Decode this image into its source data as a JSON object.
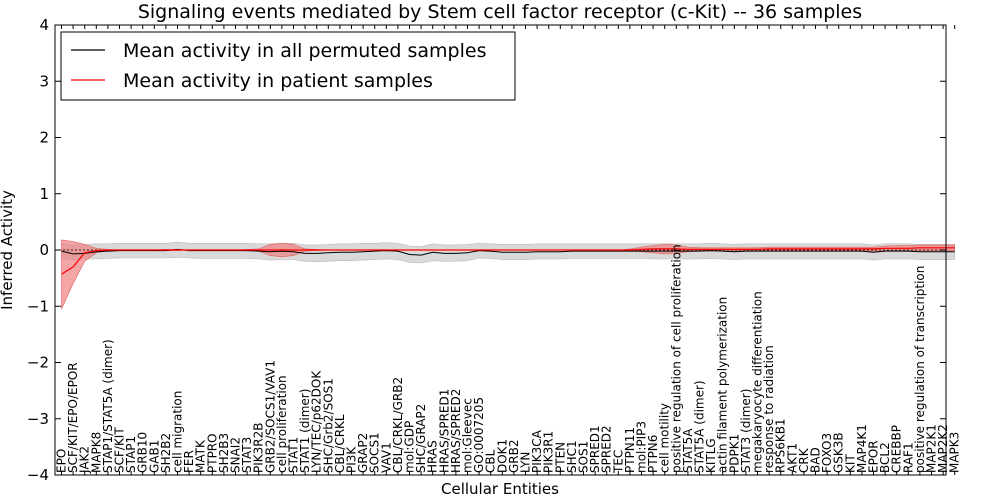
{
  "chart_data": {
    "type": "line",
    "title": "Signaling events mediated by Stem cell factor receptor (c-Kit) -- 36 samples",
    "xlabel": "Cellular Entities",
    "ylabel": "Inferred Activity",
    "ylim": [
      -4,
      4
    ],
    "yticks": [
      "−4",
      "−3",
      "−2",
      "−1",
      "0",
      "1",
      "2",
      "3",
      "4"
    ],
    "legend": {
      "placement": "top-left",
      "entries": [
        "Mean activity in all permuted samples",
        "Mean activity in patient samples"
      ]
    },
    "colors": {
      "permuted": "#000000",
      "patient": "#ff0000",
      "permuted_band": "#d9d9d9",
      "patient_band": "#f08080"
    },
    "categories": [
      "EPO",
      "SCF/KIT/EPO/EPOR",
      "JAK2",
      "MAPK8",
      "STAP1/STAT5A (dimer)",
      "SCF/KIT",
      "STAP1",
      "GRB10",
      "GAB1",
      "SH2B2",
      "cell migration",
      "FER",
      "MATK",
      "PTPRO",
      "SH2B3",
      "SNAI2",
      "STAT3",
      "PIK3R2B",
      "GRB2/SOCS1/VAV1",
      "cell proliferation",
      "STAT1",
      "STAT1 (dimer)",
      "LYN/TEC/p62DOK",
      "SHC/Grb2/SOS1",
      "CBL/CRKL",
      "PI3K",
      "GRAP2",
      "SOCS1",
      "VAV1",
      "CBL/CRKL/GRB2",
      "mol:GDP",
      "SHC/GRAP2",
      "HRAS",
      "HRAS/SPRED1",
      "HRAS/SPRED2",
      "mol:Gleevec",
      "GO:0007205",
      "CBL",
      "DOK1",
      "GRB2",
      "LYN",
      "PIK3CA",
      "PIK3R1",
      "PTEN",
      "SHC1",
      "SOS1",
      "SPRED1",
      "SPRED2",
      "TEC",
      "PTPN11",
      "mol:PIP3",
      "PTPN6",
      "cell motility",
      "positive regulation of cell proliferation",
      "STAT5A",
      "STAT5A (dimer)",
      "KITLG",
      "actin filament polymerization",
      "PDPK1",
      "STAT3 (dimer)",
      "megakaryocyte differentiation",
      "response to radiation",
      "RPS6KB1",
      "AKT1",
      "CRK",
      "BAD",
      "FOXO3",
      "GSK3B",
      "KIT",
      "MAP4K1",
      "EPOR",
      "BCL2",
      "CREBBP",
      "RAF1",
      "positive regulation of transcription",
      "MAP2K1",
      "MAP2K2",
      "MAPK3"
    ],
    "series": [
      {
        "name": "Mean activity in all permuted samples",
        "values": [
          -0.02,
          -0.07,
          -0.06,
          -0.03,
          -0.02,
          -0.01,
          -0.01,
          -0.01,
          -0.01,
          -0.01,
          0.01,
          -0.01,
          -0.01,
          -0.01,
          -0.01,
          -0.01,
          -0.01,
          -0.02,
          -0.03,
          -0.02,
          -0.03,
          -0.06,
          -0.06,
          -0.05,
          -0.04,
          -0.04,
          -0.03,
          -0.02,
          -0.01,
          -0.02,
          -0.08,
          -0.09,
          -0.04,
          -0.06,
          -0.06,
          -0.05,
          -0.01,
          -0.02,
          -0.04,
          -0.04,
          -0.04,
          -0.03,
          -0.03,
          -0.03,
          -0.02,
          -0.02,
          -0.02,
          -0.02,
          -0.02,
          -0.02,
          -0.02,
          -0.02,
          -0.02,
          -0.02,
          -0.02,
          -0.02,
          -0.01,
          -0.02,
          -0.03,
          -0.02,
          -0.02,
          -0.02,
          -0.02,
          -0.02,
          -0.02,
          -0.02,
          -0.02,
          -0.02,
          -0.02,
          -0.02,
          -0.04,
          -0.02,
          -0.02,
          -0.02,
          -0.03,
          -0.03,
          -0.03,
          -0.03
        ],
        "lower": [
          -0.15,
          -0.17,
          -0.16,
          -0.16,
          -0.15,
          -0.14,
          -0.14,
          -0.14,
          -0.14,
          -0.14,
          -0.13,
          -0.14,
          -0.15,
          -0.15,
          -0.15,
          -0.15,
          -0.15,
          -0.16,
          -0.18,
          -0.17,
          -0.17,
          -0.2,
          -0.21,
          -0.2,
          -0.19,
          -0.19,
          -0.18,
          -0.17,
          -0.16,
          -0.17,
          -0.22,
          -0.23,
          -0.19,
          -0.2,
          -0.2,
          -0.19,
          -0.14,
          -0.15,
          -0.17,
          -0.17,
          -0.17,
          -0.16,
          -0.16,
          -0.16,
          -0.15,
          -0.15,
          -0.15,
          -0.15,
          -0.15,
          -0.15,
          -0.15,
          -0.16,
          -0.16,
          -0.16,
          -0.16,
          -0.16,
          -0.15,
          -0.16,
          -0.17,
          -0.16,
          -0.16,
          -0.16,
          -0.16,
          -0.16,
          -0.16,
          -0.16,
          -0.16,
          -0.16,
          -0.16,
          -0.16,
          -0.18,
          -0.16,
          -0.16,
          -0.16,
          -0.17,
          -0.17,
          -0.17,
          -0.17
        ],
        "upper": [
          0.12,
          0.08,
          0.1,
          0.11,
          0.11,
          0.12,
          0.12,
          0.12,
          0.12,
          0.12,
          0.14,
          0.12,
          0.12,
          0.12,
          0.12,
          0.12,
          0.12,
          0.11,
          0.11,
          0.12,
          0.12,
          0.09,
          0.09,
          0.1,
          0.11,
          0.11,
          0.12,
          0.12,
          0.13,
          0.12,
          0.07,
          0.06,
          0.11,
          0.09,
          0.09,
          0.1,
          0.12,
          0.11,
          0.1,
          0.1,
          0.1,
          0.11,
          0.11,
          0.11,
          0.11,
          0.11,
          0.11,
          0.11,
          0.11,
          0.11,
          0.11,
          0.11,
          0.11,
          0.11,
          0.11,
          0.11,
          0.12,
          0.11,
          0.1,
          0.11,
          0.11,
          0.11,
          0.11,
          0.11,
          0.11,
          0.11,
          0.11,
          0.11,
          0.11,
          0.11,
          0.09,
          0.11,
          0.11,
          0.11,
          0.1,
          0.1,
          0.1,
          0.1
        ]
      },
      {
        "name": "Mean activity in patient samples",
        "values": [
          -0.43,
          -0.3,
          -0.05,
          -0.01,
          0.0,
          0.0,
          0.0,
          0.0,
          0.0,
          0.0,
          0.0,
          0.0,
          0.0,
          0.0,
          0.0,
          0.0,
          0.0,
          0.0,
          0.0,
          0.0,
          0.0,
          0.0,
          0.0,
          0.0,
          0.0,
          0.0,
          0.0,
          0.0,
          0.0,
          0.0,
          0.0,
          0.0,
          0.0,
          0.0,
          0.0,
          0.0,
          0.0,
          0.0,
          0.0,
          0.0,
          0.0,
          0.0,
          0.0,
          0.0,
          0.0,
          0.0,
          0.0,
          0.0,
          0.0,
          0.0,
          0.01,
          0.02,
          0.02,
          0.02,
          0.01,
          0.01,
          0.01,
          0.01,
          0.01,
          0.01,
          0.01,
          0.02,
          0.02,
          0.02,
          0.02,
          0.02,
          0.02,
          0.02,
          0.02,
          0.02,
          0.02,
          0.03,
          0.03,
          0.03,
          0.04,
          0.04,
          0.04,
          0.04
        ],
        "lower": [
          -1.05,
          -0.6,
          -0.2,
          -0.05,
          -0.01,
          0.0,
          0.0,
          0.0,
          0.0,
          -0.01,
          -0.01,
          0.0,
          0.0,
          0.0,
          0.0,
          0.0,
          -0.01,
          -0.02,
          -0.1,
          -0.12,
          -0.1,
          -0.02,
          -0.01,
          0.0,
          0.0,
          0.0,
          0.0,
          0.0,
          0.0,
          0.0,
          0.0,
          0.0,
          0.0,
          0.0,
          0.0,
          0.0,
          0.0,
          0.0,
          0.0,
          0.0,
          0.0,
          0.0,
          0.0,
          0.0,
          0.0,
          0.0,
          0.0,
          0.0,
          0.0,
          -0.01,
          -0.03,
          -0.05,
          -0.07,
          -0.06,
          -0.03,
          -0.02,
          -0.02,
          -0.02,
          -0.02,
          -0.02,
          -0.02,
          -0.02,
          -0.02,
          -0.02,
          -0.02,
          -0.02,
          -0.02,
          -0.02,
          -0.02,
          -0.02,
          -0.02,
          -0.02,
          -0.01,
          -0.01,
          -0.01,
          -0.01,
          -0.01,
          -0.01
        ],
        "upper": [
          0.18,
          0.15,
          0.1,
          0.03,
          0.01,
          0.0,
          0.0,
          0.0,
          0.0,
          0.01,
          0.01,
          0.0,
          0.0,
          0.0,
          0.0,
          0.0,
          0.01,
          0.02,
          0.1,
          0.12,
          0.1,
          0.02,
          0.01,
          0.0,
          0.0,
          0.0,
          0.0,
          0.0,
          0.0,
          0.0,
          0.0,
          0.0,
          0.0,
          0.0,
          0.0,
          0.0,
          0.0,
          0.0,
          0.0,
          0.0,
          0.0,
          0.0,
          0.0,
          0.0,
          0.0,
          0.0,
          0.0,
          0.0,
          0.0,
          0.02,
          0.05,
          0.08,
          0.1,
          0.09,
          0.05,
          0.04,
          0.04,
          0.04,
          0.04,
          0.04,
          0.04,
          0.05,
          0.05,
          0.05,
          0.05,
          0.05,
          0.05,
          0.05,
          0.05,
          0.05,
          0.05,
          0.07,
          0.08,
          0.08,
          0.09,
          0.09,
          0.09,
          0.09
        ]
      }
    ]
  }
}
